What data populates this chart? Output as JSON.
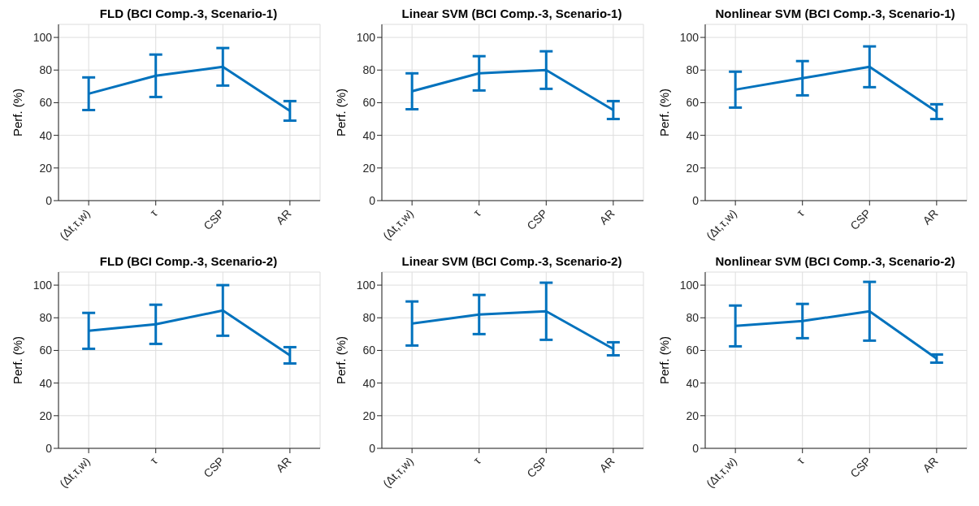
{
  "chart_data": [
    {
      "type": "line",
      "title": "FLD (BCI Comp.-3, Scenario-1)",
      "ylabel": "Perf. (%)",
      "categories": [
        "(Δt,τ,w)",
        "τ",
        "CSP",
        "AR"
      ],
      "ylim": [
        0,
        108
      ],
      "yticks": [
        0,
        20,
        40,
        60,
        80,
        100
      ],
      "grid": true,
      "line_style": "solid",
      "series": [
        {
          "color": "#0072bd",
          "values": [
            65.5,
            76.5,
            82,
            55
          ],
          "errors": [
            10,
            13,
            11.5,
            6
          ]
        }
      ]
    },
    {
      "type": "line",
      "title": "Linear SVM (BCI Comp.-3, Scenario-1)",
      "ylabel": "Perf. (%)",
      "categories": [
        "(Δt,τ,w)",
        "τ",
        "CSP",
        "AR"
      ],
      "ylim": [
        0,
        108
      ],
      "yticks": [
        0,
        20,
        40,
        60,
        80,
        100
      ],
      "grid": true,
      "line_style": "solid",
      "series": [
        {
          "color": "#0072bd",
          "values": [
            67,
            78,
            80,
            55.5
          ],
          "errors": [
            11,
            10.5,
            11.5,
            5.5
          ]
        }
      ]
    },
    {
      "type": "line",
      "title": "Nonlinear SVM (BCI Comp.-3, Scenario-1)",
      "ylabel": "Perf. (%)",
      "categories": [
        "(Δt,τ,w)",
        "τ",
        "CSP",
        "AR"
      ],
      "ylim": [
        0,
        108
      ],
      "yticks": [
        0,
        20,
        40,
        60,
        80,
        100
      ],
      "grid": true,
      "line_style": "solid",
      "series": [
        {
          "color": "#0072bd",
          "values": [
            68,
            75,
            82,
            54.5
          ],
          "errors": [
            11,
            10.5,
            12.5,
            4.5
          ]
        }
      ]
    },
    {
      "type": "line",
      "title": "FLD (BCI Comp.-3, Scenario-2)",
      "ylabel": "Perf. (%)",
      "categories": [
        "(Δt,τ,w)",
        "τ",
        "CSP",
        "AR"
      ],
      "ylim": [
        0,
        108
      ],
      "yticks": [
        0,
        20,
        40,
        60,
        80,
        100
      ],
      "grid": true,
      "line_style": "solid",
      "series": [
        {
          "color": "#0072bd",
          "values": [
            72,
            76,
            84.5,
            57
          ],
          "errors": [
            11,
            12,
            15.5,
            5
          ]
        }
      ]
    },
    {
      "type": "line",
      "title": "Linear SVM (BCI Comp.-3, Scenario-2)",
      "ylabel": "Perf. (%)",
      "categories": [
        "(Δt,τ,w)",
        "τ",
        "CSP",
        "AR"
      ],
      "ylim": [
        0,
        108
      ],
      "yticks": [
        0,
        20,
        40,
        60,
        80,
        100
      ],
      "grid": true,
      "line_style": "solid",
      "series": [
        {
          "color": "#0072bd",
          "values": [
            76.5,
            82,
            84,
            61
          ],
          "errors": [
            13.5,
            12,
            17.5,
            4
          ]
        }
      ]
    },
    {
      "type": "line",
      "title": "Nonlinear SVM (BCI Comp.-3, Scenario-2)",
      "ylabel": "Perf. (%)",
      "categories": [
        "(Δt,τ,w)",
        "τ",
        "CSP",
        "AR"
      ],
      "ylim": [
        0,
        108
      ],
      "yticks": [
        0,
        20,
        40,
        60,
        80,
        100
      ],
      "grid": true,
      "line_style": "solid",
      "series": [
        {
          "color": "#0072bd",
          "values": [
            75,
            78,
            84,
            55
          ],
          "errors": [
            12.5,
            10.5,
            18,
            2.5
          ]
        }
      ]
    }
  ]
}
